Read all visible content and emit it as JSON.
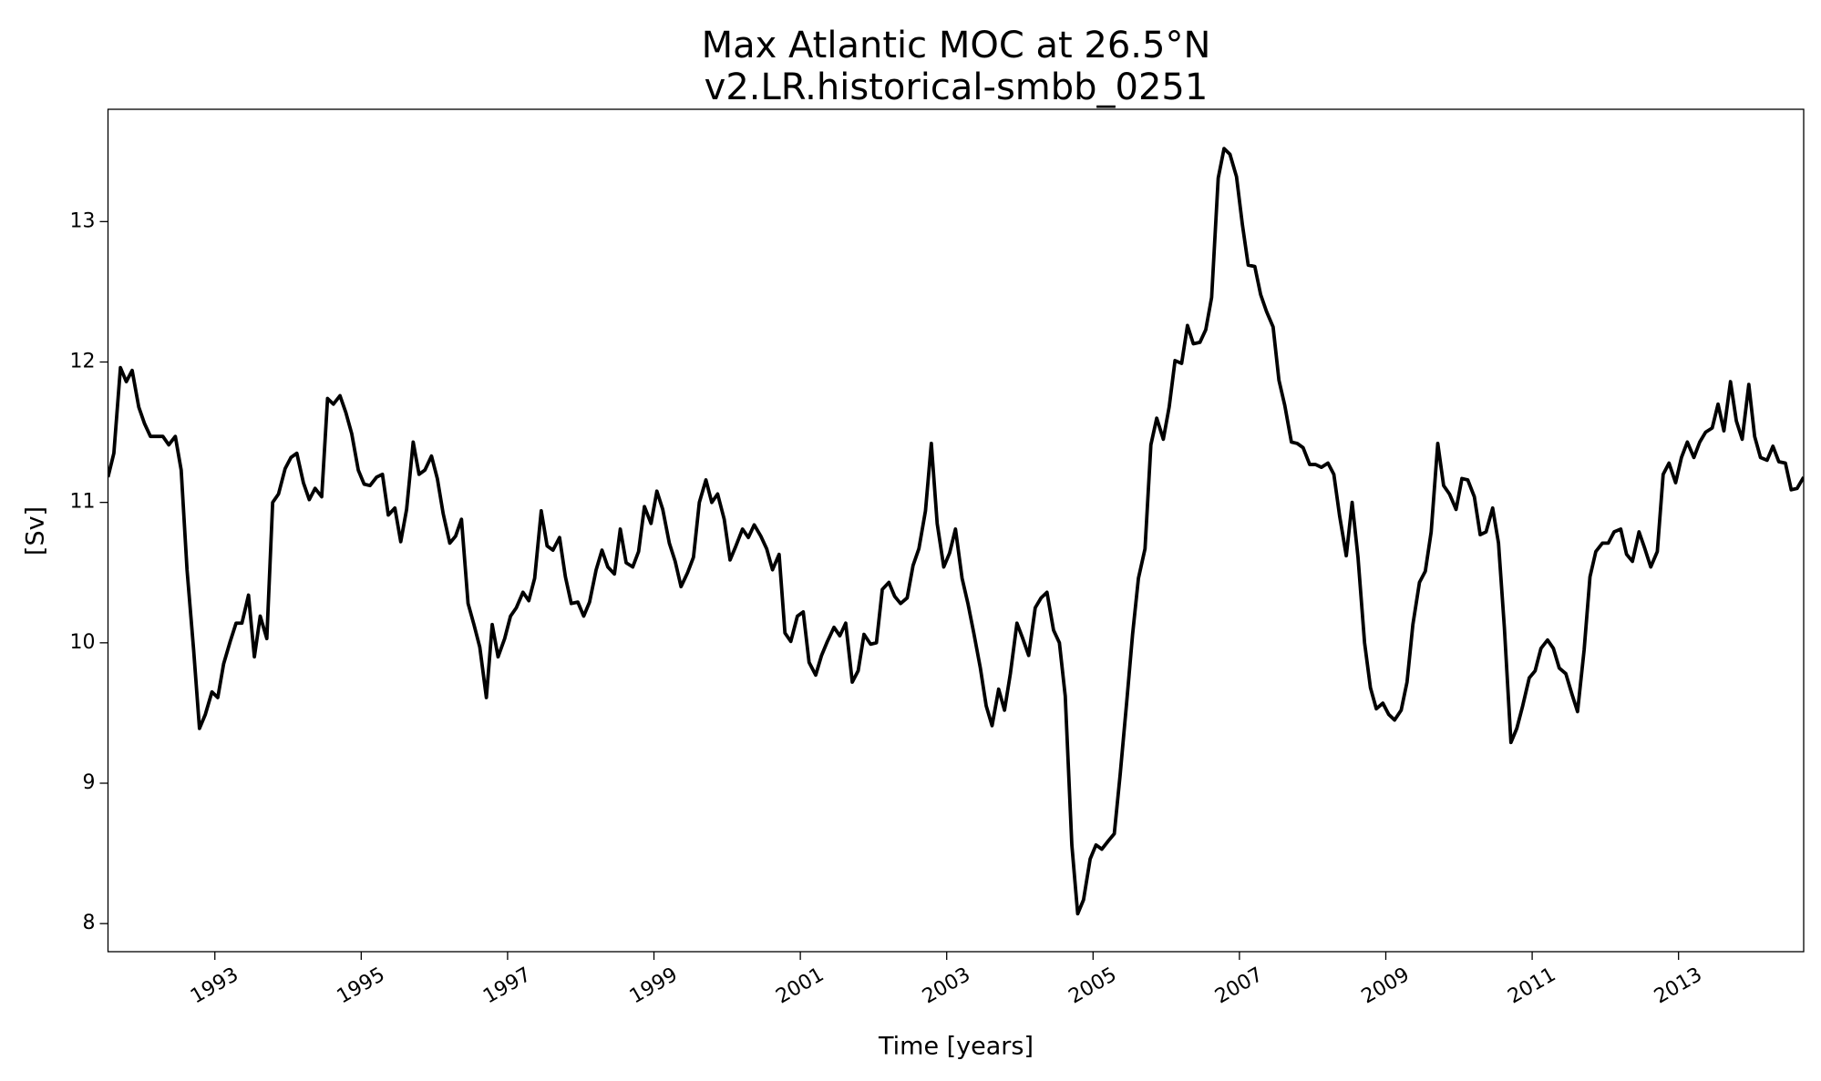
{
  "chart_data": {
    "type": "line",
    "title": "Max Atlantic MOC at 26.5°N",
    "subtitle": "v2.LR.historical-smbb_0251",
    "xlabel": "Time [years]",
    "ylabel": "[Sv]",
    "color": "#000000",
    "xlim": [
      1991.54,
      2014.71
    ],
    "ylim": [
      7.8,
      13.8
    ],
    "xticks": [
      1993,
      1995,
      1997,
      1999,
      2001,
      2003,
      2005,
      2007,
      2009,
      2011,
      2013
    ],
    "yticks": [
      8,
      9,
      10,
      11,
      12,
      13
    ],
    "grid": false,
    "x": [
      1991.54,
      1991.62,
      1991.71,
      1991.79,
      1991.87,
      1991.96,
      1992.04,
      1992.12,
      1992.21,
      1992.29,
      1992.37,
      1992.46,
      1992.54,
      1992.62,
      1992.71,
      1992.79,
      1992.87,
      1992.96,
      1993.04,
      1993.12,
      1993.21,
      1993.29,
      1993.37,
      1993.46,
      1993.54,
      1993.62,
      1993.71,
      1993.79,
      1993.87,
      1993.96,
      1994.04,
      1994.12,
      1994.21,
      1994.29,
      1994.37,
      1994.46,
      1994.54,
      1994.62,
      1994.71,
      1994.79,
      1994.87,
      1994.96,
      1995.04,
      1995.12,
      1995.21,
      1995.29,
      1995.37,
      1995.46,
      1995.54,
      1995.62,
      1995.71,
      1995.79,
      1995.87,
      1995.96,
      1996.04,
      1996.12,
      1996.21,
      1996.29,
      1996.37,
      1996.46,
      1996.54,
      1996.62,
      1996.71,
      1996.79,
      1996.87,
      1996.96,
      1997.04,
      1997.12,
      1997.21,
      1997.29,
      1997.37,
      1997.46,
      1997.54,
      1997.62,
      1997.71,
      1997.79,
      1997.87,
      1997.96,
      1998.04,
      1998.12,
      1998.21,
      1998.29,
      1998.37,
      1998.46,
      1998.54,
      1998.62,
      1998.71,
      1998.79,
      1998.87,
      1998.96,
      1999.04,
      1999.12,
      1999.21,
      1999.29,
      1999.37,
      1999.46,
      1999.54,
      1999.62,
      1999.71,
      1999.79,
      1999.87,
      1999.96,
      2000.04,
      2000.12,
      2000.21,
      2000.29,
      2000.37,
      2000.46,
      2000.54,
      2000.62,
      2000.71,
      2000.79,
      2000.87,
      2000.96,
      2001.04,
      2001.12,
      2001.21,
      2001.29,
      2001.37,
      2001.46,
      2001.54,
      2001.62,
      2001.71,
      2001.79,
      2001.87,
      2001.96,
      2002.04,
      2002.12,
      2002.21,
      2002.29,
      2002.37,
      2002.46,
      2002.54,
      2002.62,
      2002.71,
      2002.79,
      2002.87,
      2002.96,
      2003.04,
      2003.12,
      2003.21,
      2003.29,
      2003.37,
      2003.46,
      2003.54,
      2003.62,
      2003.71,
      2003.79,
      2003.87,
      2003.96,
      2004.04,
      2004.12,
      2004.21,
      2004.29,
      2004.37,
      2004.46,
      2004.54,
      2004.62,
      2004.71,
      2004.79,
      2004.87,
      2004.96,
      2005.04,
      2005.12,
      2005.21,
      2005.29,
      2005.37,
      2005.46,
      2005.54,
      2005.62,
      2005.71,
      2005.79,
      2005.87,
      2005.96,
      2006.04,
      2006.12,
      2006.21,
      2006.29,
      2006.37,
      2006.46,
      2006.54,
      2006.62,
      2006.71,
      2006.79,
      2006.87,
      2006.96,
      2007.04,
      2007.12,
      2007.21,
      2007.29,
      2007.37,
      2007.46,
      2007.54,
      2007.62,
      2007.71,
      2007.79,
      2007.87,
      2007.96,
      2008.04,
      2008.12,
      2008.21,
      2008.29,
      2008.37,
      2008.46,
      2008.54,
      2008.62,
      2008.71,
      2008.79,
      2008.87,
      2008.96,
      2009.04,
      2009.12,
      2009.21,
      2009.29,
      2009.37,
      2009.46,
      2009.54,
      2009.62,
      2009.71,
      2009.79,
      2009.87,
      2009.96,
      2010.04,
      2010.12,
      2010.21,
      2010.29,
      2010.37,
      2010.46,
      2010.54,
      2010.62,
      2010.71,
      2010.79,
      2010.87,
      2010.96,
      2011.04,
      2011.12,
      2011.21,
      2011.29,
      2011.37,
      2011.46,
      2011.54,
      2011.62,
      2011.71,
      2011.79,
      2011.87,
      2011.96,
      2012.04,
      2012.12,
      2012.21,
      2012.29,
      2012.37,
      2012.46,
      2012.54,
      2012.62,
      2012.71,
      2012.79,
      2012.87,
      2012.96,
      2013.04,
      2013.12,
      2013.21,
      2013.29,
      2013.37,
      2013.46,
      2013.54,
      2013.62,
      2013.71,
      2013.79,
      2013.87,
      2013.96,
      2014.04,
      2014.12,
      2014.21,
      2014.29,
      2014.37,
      2014.46,
      2014.54,
      2014.62,
      2014.71
    ],
    "values": [
      11.18,
      11.35,
      11.96,
      11.86,
      11.94,
      11.68,
      11.56,
      11.47,
      11.47,
      11.47,
      11.41,
      11.47,
      11.23,
      10.52,
      9.95,
      9.39,
      9.49,
      9.65,
      9.61,
      9.85,
      10.01,
      10.14,
      10.14,
      10.34,
      9.9,
      10.19,
      10.03,
      11.0,
      11.06,
      11.24,
      11.32,
      11.35,
      11.14,
      11.02,
      11.1,
      11.04,
      11.74,
      11.7,
      11.76,
      11.64,
      11.49,
      11.23,
      11.13,
      11.12,
      11.18,
      11.2,
      10.91,
      10.96,
      10.72,
      10.95,
      11.43,
      11.2,
      11.23,
      11.33,
      11.17,
      10.92,
      10.71,
      10.76,
      10.88,
      10.28,
      10.13,
      9.97,
      9.61,
      10.13,
      9.9,
      10.03,
      10.19,
      10.25,
      10.36,
      10.3,
      10.46,
      10.94,
      10.69,
      10.66,
      10.75,
      10.47,
      10.28,
      10.29,
      10.19,
      10.29,
      10.52,
      10.66,
      10.54,
      10.49,
      10.81,
      10.57,
      10.54,
      10.65,
      10.97,
      10.85,
      11.08,
      10.95,
      10.71,
      10.58,
      10.4,
      10.5,
      10.61,
      11.0,
      11.16,
      11.0,
      11.06,
      10.88,
      10.59,
      10.69,
      10.81,
      10.75,
      10.84,
      10.76,
      10.67,
      10.52,
      10.63,
      10.07,
      10.01,
      10.19,
      10.22,
      9.86,
      9.77,
      9.91,
      10.01,
      10.11,
      10.05,
      10.14,
      9.72,
      9.8,
      10.06,
      9.99,
      10.0,
      10.38,
      10.43,
      10.33,
      10.28,
      10.32,
      10.55,
      10.67,
      10.94,
      11.42,
      10.85,
      10.54,
      10.64,
      10.81,
      10.46,
      10.28,
      10.07,
      9.82,
      9.55,
      9.41,
      9.67,
      9.52,
      9.78,
      10.14,
      10.03,
      9.91,
      10.25,
      10.32,
      10.36,
      10.09,
      10.0,
      9.62,
      8.56,
      8.07,
      8.17,
      8.46,
      8.56,
      8.53,
      8.59,
      8.64,
      9.06,
      9.58,
      10.06,
      10.46,
      10.67,
      11.41,
      11.6,
      11.45,
      11.68,
      12.01,
      11.99,
      12.26,
      12.13,
      12.14,
      12.23,
      12.46,
      13.31,
      13.52,
      13.48,
      13.32,
      12.98,
      12.69,
      12.68,
      12.48,
      12.36,
      12.25,
      11.87,
      11.69,
      11.43,
      11.42,
      11.39,
      11.27,
      11.27,
      11.25,
      11.28,
      11.2,
      10.9,
      10.62,
      11.0,
      10.61,
      10.0,
      9.68,
      9.53,
      9.57,
      9.49,
      9.45,
      9.52,
      9.72,
      10.13,
      10.43,
      10.51,
      10.79,
      11.42,
      11.12,
      11.06,
      10.95,
      11.17,
      11.16,
      11.04,
      10.77,
      10.79,
      10.96,
      10.71,
      10.11,
      9.29,
      9.39,
      9.55,
      9.75,
      9.8,
      9.96,
      10.02,
      9.96,
      9.82,
      9.78,
      9.64,
      9.51,
      9.95,
      10.47,
      10.65,
      10.71,
      10.71,
      10.79,
      10.81,
      10.63,
      10.58,
      10.79,
      10.67,
      10.54,
      10.65,
      11.2,
      11.28,
      11.14,
      11.32,
      11.43,
      11.32,
      11.43,
      11.5,
      11.53,
      11.7,
      11.51,
      11.86,
      11.58,
      11.45,
      11.84,
      11.47,
      11.32,
      11.3,
      11.4,
      11.29,
      11.28,
      11.09,
      11.1,
      11.18
    ]
  }
}
